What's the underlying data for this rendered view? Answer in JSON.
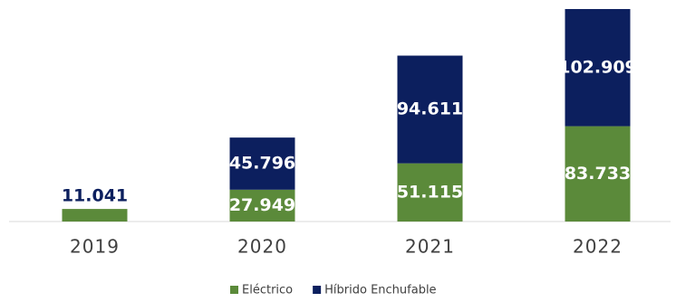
{
  "chart_data": {
    "type": "bar",
    "stacked": true,
    "categories": [
      "2019",
      "2020",
      "2021",
      "2022"
    ],
    "series": [
      {
        "name": "Eléctrico",
        "color": "#5b8a3a",
        "values": [
          11041,
          27949,
          51115,
          83733
        ],
        "value_labels": [
          "11.041",
          "27.949",
          "51.115",
          "83.733"
        ]
      },
      {
        "name": "Híbrido Enchufable",
        "color": "#0c1f5e",
        "values": [
          null,
          45796,
          94611,
          102909
        ],
        "value_labels": [
          null,
          "45.796",
          "94.611",
          "102.909"
        ]
      }
    ]
  }
}
